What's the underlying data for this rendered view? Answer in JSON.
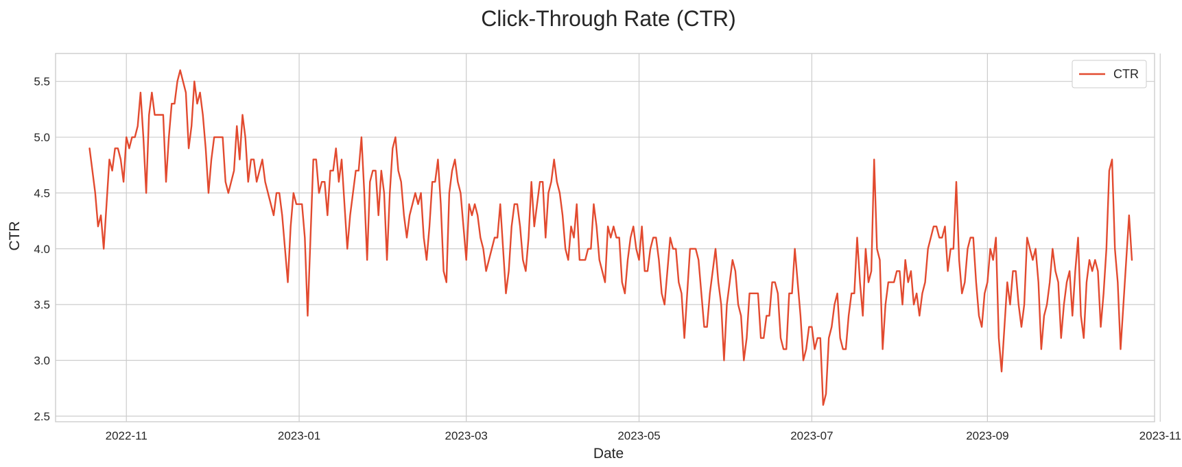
{
  "chart_data": {
    "type": "line",
    "title": "Click-Through Rate (CTR)",
    "xlabel": "Date",
    "ylabel": "CTR",
    "x_start": "2022-10-19",
    "x_end": "2023-10-18",
    "xlim": [
      "2022-10-07",
      "2023-10-30"
    ],
    "ylim": [
      2.45,
      5.75
    ],
    "xticks": [
      {
        "date": "2022-11-01",
        "label": "2022-11"
      },
      {
        "date": "2023-01-01",
        "label": "2023-01"
      },
      {
        "date": "2023-03-01",
        "label": "2023-03"
      },
      {
        "date": "2023-05-01",
        "label": "2023-05"
      },
      {
        "date": "2023-07-01",
        "label": "2023-07"
      },
      {
        "date": "2023-09-01",
        "label": "2023-09"
      },
      {
        "date": "2023-11-01",
        "label": "2023-11"
      }
    ],
    "yticks": [
      {
        "value": 2.5,
        "label": "2.5"
      },
      {
        "value": 3.0,
        "label": "3.0"
      },
      {
        "value": 3.5,
        "label": "3.5"
      },
      {
        "value": 4.0,
        "label": "4.0"
      },
      {
        "value": 4.5,
        "label": "4.5"
      },
      {
        "value": 5.0,
        "label": "5.0"
      },
      {
        "value": 5.5,
        "label": "5.5"
      }
    ],
    "grid": true,
    "legend": "top-right",
    "series": [
      {
        "name": "CTR",
        "color": "#e24a2f",
        "values": [
          4.9,
          4.7,
          4.5,
          4.2,
          4.3,
          4.0,
          4.4,
          4.8,
          4.7,
          4.9,
          4.9,
          4.8,
          4.6,
          5.0,
          4.9,
          5.0,
          5.0,
          5.1,
          5.4,
          5.0,
          4.5,
          5.2,
          5.4,
          5.2,
          5.2,
          5.2,
          5.2,
          4.6,
          5.0,
          5.3,
          5.3,
          5.5,
          5.6,
          5.5,
          5.4,
          4.9,
          5.1,
          5.5,
          5.3,
          5.4,
          5.2,
          4.9,
          4.5,
          4.8,
          5.0,
          5.0,
          5.0,
          5.0,
          4.6,
          4.5,
          4.6,
          4.7,
          5.1,
          4.8,
          5.2,
          5.0,
          4.6,
          4.8,
          4.8,
          4.6,
          4.7,
          4.8,
          4.6,
          4.5,
          4.4,
          4.3,
          4.5,
          4.5,
          4.3,
          4.0,
          3.7,
          4.2,
          4.5,
          4.4,
          4.4,
          4.4,
          4.1,
          3.4,
          4.1,
          4.8,
          4.8,
          4.5,
          4.6,
          4.6,
          4.3,
          4.7,
          4.7,
          4.9,
          4.6,
          4.8,
          4.4,
          4.0,
          4.3,
          4.5,
          4.7,
          4.7,
          5.0,
          4.5,
          3.9,
          4.6,
          4.7,
          4.7,
          4.3,
          4.7,
          4.5,
          3.9,
          4.5,
          4.9,
          5.0,
          4.7,
          4.6,
          4.3,
          4.1,
          4.3,
          4.4,
          4.5,
          4.4,
          4.5,
          4.1,
          3.9,
          4.2,
          4.6,
          4.6,
          4.8,
          4.4,
          3.8,
          3.7,
          4.5,
          4.7,
          4.8,
          4.6,
          4.5,
          4.2,
          3.9,
          4.4,
          4.3,
          4.4,
          4.3,
          4.1,
          4.0,
          3.8,
          3.9,
          4.0,
          4.1,
          4.1,
          4.4,
          4.0,
          3.6,
          3.8,
          4.2,
          4.4,
          4.4,
          4.2,
          3.9,
          3.8,
          4.1,
          4.6,
          4.2,
          4.4,
          4.6,
          4.6,
          4.1,
          4.5,
          4.6,
          4.8,
          4.6,
          4.5,
          4.3,
          4.0,
          3.9,
          4.2,
          4.1,
          4.4,
          3.9,
          3.9,
          3.9,
          4.0,
          4.0,
          4.4,
          4.2,
          3.9,
          3.8,
          3.7,
          4.2,
          4.1,
          4.2,
          4.1,
          4.1,
          3.7,
          3.6,
          3.9,
          4.1,
          4.2,
          4.0,
          3.9,
          4.2,
          3.8,
          3.8,
          4.0,
          4.1,
          4.1,
          3.9,
          3.6,
          3.5,
          3.8,
          4.1,
          4.0,
          4.0,
          3.7,
          3.6,
          3.2,
          3.6,
          4.0,
          4.0,
          4.0,
          3.9,
          3.6,
          3.3,
          3.3,
          3.6,
          3.8,
          4.0,
          3.7,
          3.5,
          3.0,
          3.5,
          3.7,
          3.9,
          3.8,
          3.5,
          3.4,
          3.0,
          3.2,
          3.6,
          3.6,
          3.6,
          3.6,
          3.2,
          3.2,
          3.4,
          3.4,
          3.7,
          3.7,
          3.6,
          3.2,
          3.1,
          3.1,
          3.6,
          3.6,
          4.0,
          3.7,
          3.4,
          3.0,
          3.1,
          3.3,
          3.3,
          3.1,
          3.2,
          3.2,
          2.6,
          2.7,
          3.2,
          3.3,
          3.5,
          3.6,
          3.2,
          3.1,
          3.1,
          3.4,
          3.6,
          3.6,
          4.1,
          3.7,
          3.4,
          4.0,
          3.7,
          3.8,
          4.8,
          4.0,
          3.9,
          3.1,
          3.5,
          3.7,
          3.7,
          3.7,
          3.8,
          3.8,
          3.5,
          3.9,
          3.7,
          3.8,
          3.5,
          3.6,
          3.4,
          3.6,
          3.7,
          4.0,
          4.1,
          4.2,
          4.2,
          4.1,
          4.1,
          4.2,
          3.8,
          4.0,
          4.0,
          4.6,
          3.9,
          3.6,
          3.7,
          4.0,
          4.1,
          4.1,
          3.7,
          3.4,
          3.3,
          3.6,
          3.7,
          4.0,
          3.9,
          4.1,
          3.2,
          2.9,
          3.3,
          3.7,
          3.5,
          3.8,
          3.8,
          3.5,
          3.3,
          3.5,
          4.1,
          4.0,
          3.9,
          4.0,
          3.7,
          3.1,
          3.4,
          3.5,
          3.7,
          4.0,
          3.8,
          3.7,
          3.2,
          3.5,
          3.7,
          3.8,
          3.4,
          3.8,
          4.1,
          3.4,
          3.2,
          3.7,
          3.9,
          3.8,
          3.9,
          3.8,
          3.3,
          3.6,
          4.0,
          4.7,
          4.8,
          4.0,
          3.7,
          3.1,
          3.5,
          3.9,
          4.3,
          3.9
        ]
      }
    ]
  }
}
